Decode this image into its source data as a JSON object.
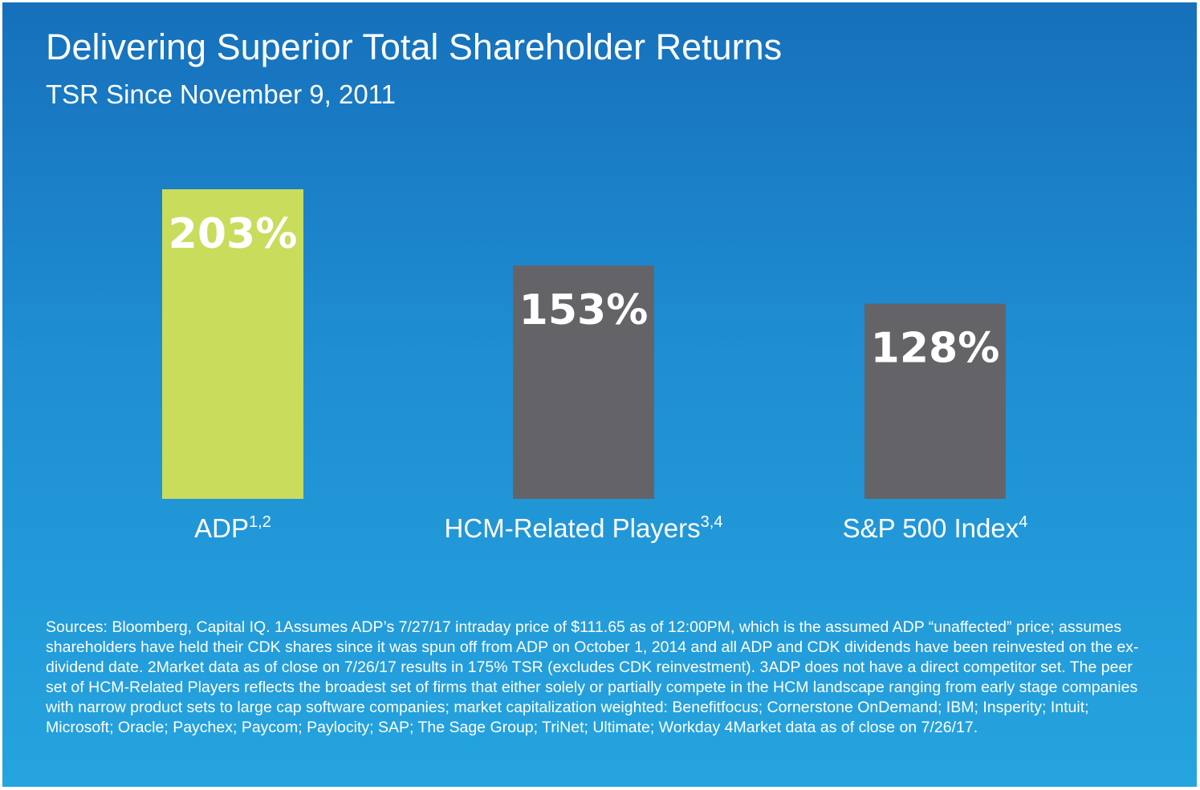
{
  "header": {
    "title": "Delivering Superior Total Shareholder Returns",
    "subtitle": "TSR Since November 9, 2011"
  },
  "colors": {
    "adp_bar": "#c9dc5c",
    "peer_bar": "#646468"
  },
  "chart_data": {
    "type": "bar",
    "title": "Delivering Superior Total Shareholder Returns",
    "subtitle": "TSR Since November 9, 2011",
    "unit": "%",
    "xlabel": "",
    "ylabel": "",
    "ylim": [
      0,
      203
    ],
    "grid": false,
    "legend": "none",
    "categories": [
      {
        "label": "ADP",
        "superscript": "1,2",
        "value": 203,
        "value_label": "203%",
        "color": "#c9dc5c"
      },
      {
        "label": "HCM-Related Players",
        "superscript": "3,4",
        "value": 153,
        "value_label": "153%",
        "color": "#646468"
      },
      {
        "label": "S&P 500 Index",
        "superscript": "4",
        "value": 128,
        "value_label": "128%",
        "color": "#646468"
      }
    ]
  },
  "footnotes": "Sources: Bloomberg, Capital IQ. 1Assumes ADP’s 7/27/17 intraday price of $111.65 as of 12:00PM, which is the assumed ADP “unaffected” price; assumes shareholders have held their CDK shares since it was spun off from ADP on October 1, 2014 and all ADP and CDK dividends have been reinvested on the ex-dividend date. 2Market data as of close on 7/26/17 results in 175% TSR (excludes CDK reinvestment). 3ADP does not have a direct competitor set. The peer set of HCM-Related Players reflects the broadest set of firms that either solely or partially compete in the HCM landscape ranging from early stage companies with narrow product sets to large cap software companies; market capitalization weighted: Benefitfocus; Cornerstone OnDemand; IBM; Insperity; Intuit; Microsoft; Oracle; Paychex; Paycom; Paylocity; SAP; The Sage Group; TriNet; Ultimate; Workday 4Market data as of close on 7/26/17."
}
